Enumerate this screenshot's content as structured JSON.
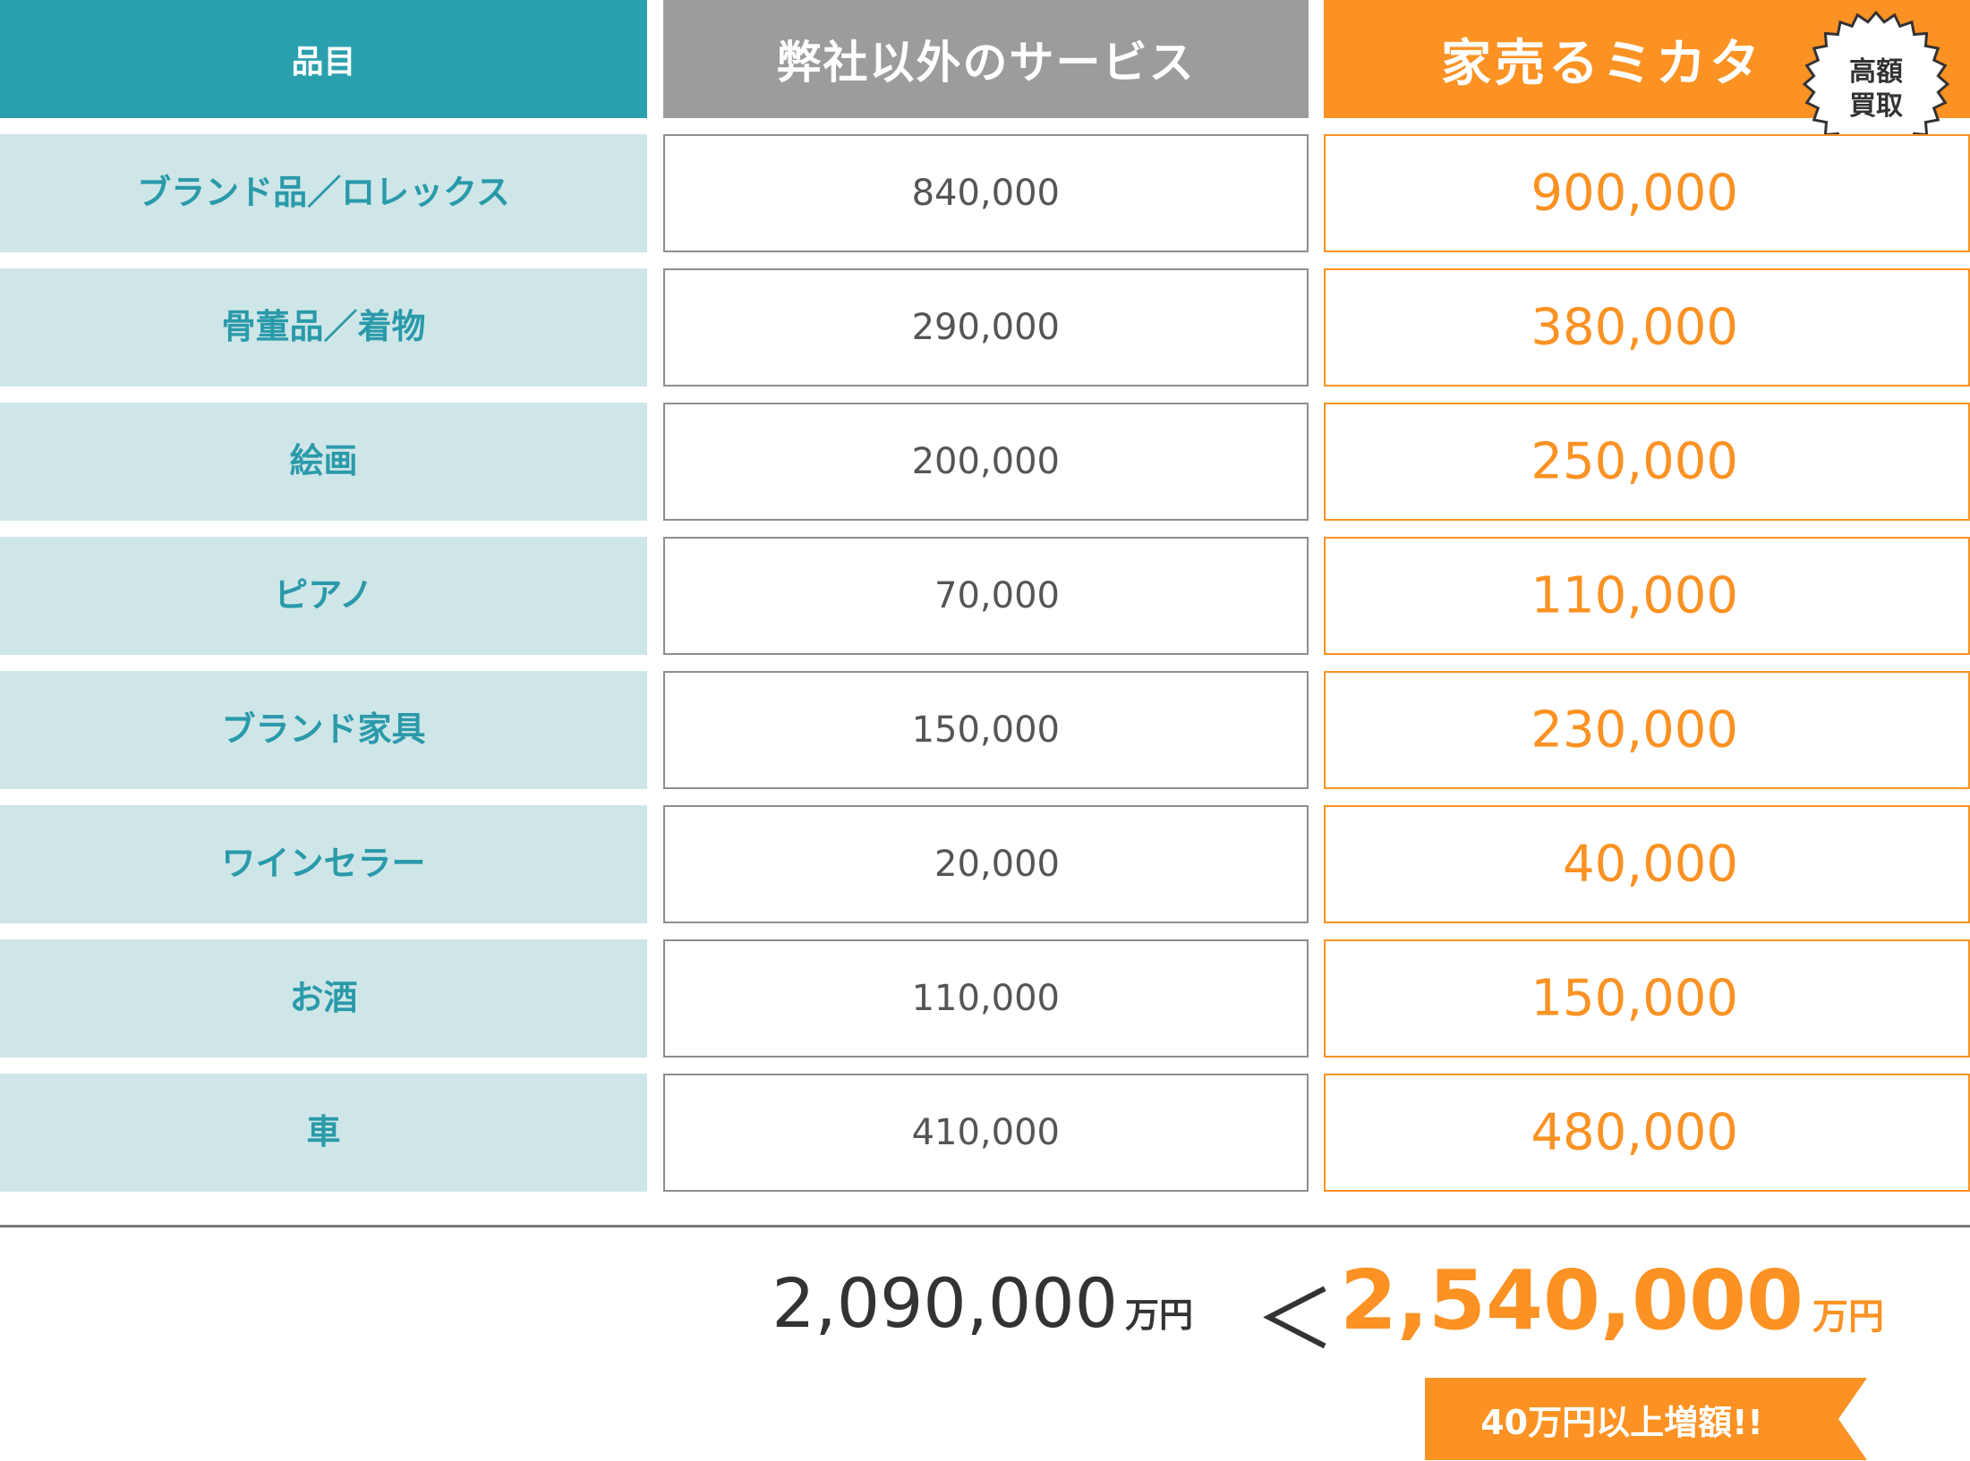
{
  "header": {
    "item_label": "品目",
    "other_label": "弊社以外のサービス",
    "ours_label": "家売るミカタ"
  },
  "badge": {
    "line1": "高額",
    "line2": "買取"
  },
  "rows": [
    {
      "item": "ブランド品／ロレックス",
      "other": "840,000",
      "ours": "900,000"
    },
    {
      "item": "骨董品／着物",
      "other": "290,000",
      "ours": "380,000"
    },
    {
      "item": "絵画",
      "other": "200,000",
      "ours": "250,000"
    },
    {
      "item": "ピアノ",
      "other": "70,000",
      "ours": "110,000"
    },
    {
      "item": "ブランド家具",
      "other": "150,000",
      "ours": "230,000"
    },
    {
      "item": "ワインセラー",
      "other": "20,000",
      "ours": "40,000"
    },
    {
      "item": "お酒",
      "other": "110,000",
      "ours": "150,000"
    },
    {
      "item": "車",
      "other": "410,000",
      "ours": "480,000"
    }
  ],
  "totals": {
    "other": "2,090,000",
    "other_unit": "万円",
    "comparator": "＜",
    "ours": "2,540,000",
    "ours_unit": "万円"
  },
  "note": "40万円以上増額!!",
  "colors": {
    "teal": "#2aa0ae",
    "teal_light": "#cfe6e8",
    "gray": "#9c9c9c",
    "orange": "#fb9223",
    "ribbon_blue": "#7fc4d3"
  }
}
